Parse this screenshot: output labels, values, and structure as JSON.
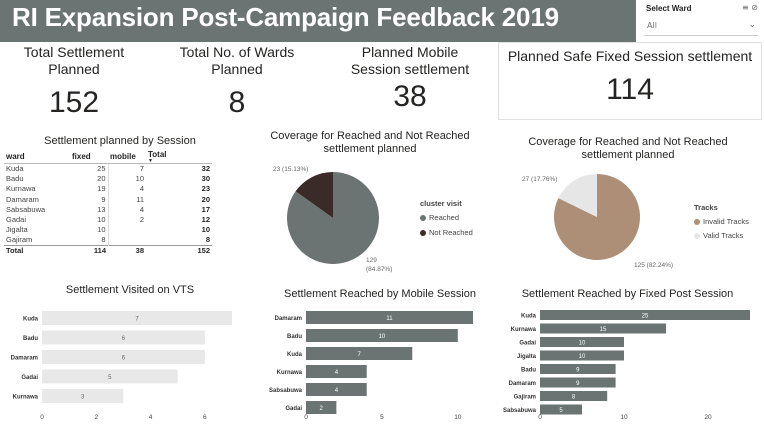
{
  "title": "RI Expansion Post-Campaign Feedback 2019",
  "slicer": {
    "label": "Select Ward",
    "value": "All",
    "icons": "≡ ⊘",
    "chevron": "⌄"
  },
  "kpis": {
    "settlement": {
      "label": "Total Settlement Planned",
      "value": "152"
    },
    "wards": {
      "label": "Total No. of Wards Planned",
      "value": "8"
    },
    "mobile": {
      "label": "Planned Mobile Session settlement",
      "value": "38"
    },
    "fixed": {
      "label": "Planned Safe Fixed Session settlement",
      "value": "114"
    }
  },
  "matrix": {
    "title": "Settlement planned by Session",
    "headers": [
      "ward",
      "fixed",
      "mobile",
      "Total"
    ],
    "rows": [
      [
        "Kuda",
        "25",
        "7",
        "32"
      ],
      [
        "Badu",
        "20",
        "10",
        "30"
      ],
      [
        "Kurnawa",
        "19",
        "4",
        "23"
      ],
      [
        "Damaram",
        "9",
        "11",
        "20"
      ],
      [
        "Sabsabuwa",
        "13",
        "4",
        "17"
      ],
      [
        "Gadai",
        "10",
        "2",
        "12"
      ],
      [
        "Jigalta",
        "10",
        "",
        "10"
      ],
      [
        "Gajiram",
        "8",
        "",
        "8"
      ]
    ],
    "total": [
      "Total",
      "114",
      "38",
      "152"
    ]
  },
  "pie1": {
    "title": "Coverage for Reached and Not Reached settlement planned",
    "legend_title": "cluster visit",
    "label_small": "23 (15.13%)",
    "label_large_1": "129",
    "label_large_2": "(84.87%)"
  },
  "pie2": {
    "title": "Coverage for Reached and Not Reached settlement planned",
    "legend_title": "Tracks",
    "label_small": "27 (17.76%)",
    "label_large": "125 (82.24%)"
  },
  "chart_data": [
    {
      "type": "pie",
      "title": "Coverage for Reached and Not Reached settlement planned",
      "legend_title": "cluster visit",
      "slices": [
        {
          "name": "Reached",
          "value": 129,
          "pct": 84.87,
          "color": "#6b7473"
        },
        {
          "name": "Not Reached",
          "value": 23,
          "pct": 15.13,
          "color": "#3a2a28"
        }
      ]
    },
    {
      "type": "pie",
      "title": "Coverage for Reached and Not Reached settlement planned",
      "legend_title": "Tracks",
      "slices": [
        {
          "name": "Invalid Tracks",
          "value": 125,
          "pct": 82.24,
          "color": "#ad8e77"
        },
        {
          "name": "Valid Tracks",
          "value": 27,
          "pct": 17.76,
          "color": "#e6e6e6"
        }
      ]
    },
    {
      "type": "bar",
      "title": "Settlement Visited on VTS",
      "categories": [
        "Kuda",
        "Badu",
        "Damaram",
        "Gadai",
        "Kurnawa"
      ],
      "values": [
        7,
        6,
        6,
        5,
        3
      ],
      "xticks": [
        "0",
        "2",
        "4",
        "6"
      ],
      "xlim": [
        0,
        7
      ],
      "color": "#e8e8e8",
      "label_color": "#666666"
    },
    {
      "type": "bar",
      "title": "Settlement Reached by Mobile Session",
      "categories": [
        "Damaram",
        "Badu",
        "Kuda",
        "Kurnawa",
        "Sabsabuwa",
        "Gadai"
      ],
      "values": [
        11,
        10,
        7,
        4,
        4,
        2
      ],
      "xticks": [
        "0",
        "5",
        "10"
      ],
      "xlim": [
        0,
        11
      ],
      "color": "#6b7473",
      "label_color": "#ffffff"
    },
    {
      "type": "bar",
      "title": "Settlement Reached by Fixed Post Session",
      "categories": [
        "Kuda",
        "Kurnawa",
        "Gadai",
        "Jigalta",
        "Badu",
        "Damaram",
        "Gajiram",
        "Sabsabuwa"
      ],
      "values": [
        25,
        15,
        10,
        10,
        9,
        9,
        8,
        5
      ],
      "xticks": [
        "0",
        "10",
        "20"
      ],
      "xlim": [
        0,
        25
      ],
      "color": "#6b7473",
      "label_color": "#ffffff"
    }
  ]
}
